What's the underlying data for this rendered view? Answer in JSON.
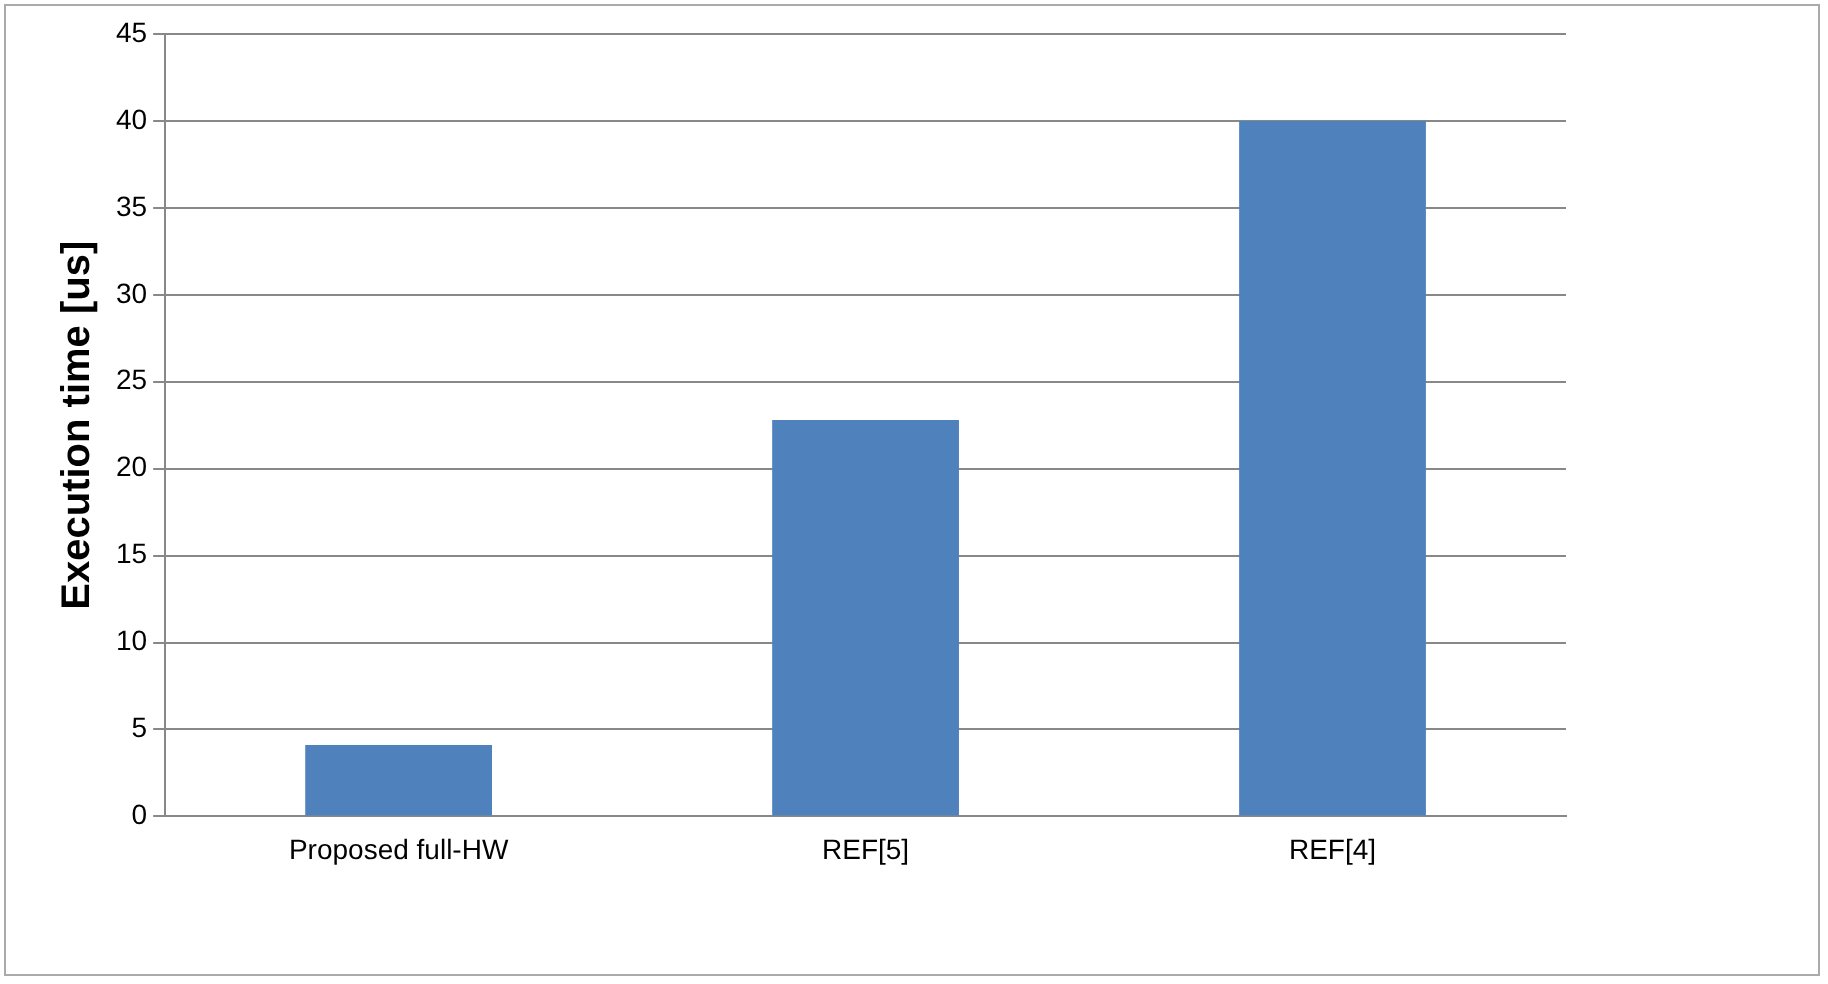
{
  "chart_data": {
    "type": "bar",
    "ylabel": "Execution time [us]",
    "categories": [
      "Proposed full-HW",
      "REF[5]",
      "REF[4]"
    ],
    "values": [
      4.1,
      22.8,
      40
    ],
    "color": "#4f81bd",
    "ylim": [
      0,
      45
    ],
    "yticks": [
      0,
      5,
      10,
      15,
      20,
      25,
      30,
      35,
      40,
      45
    ],
    "grid": "y",
    "legend": false
  }
}
